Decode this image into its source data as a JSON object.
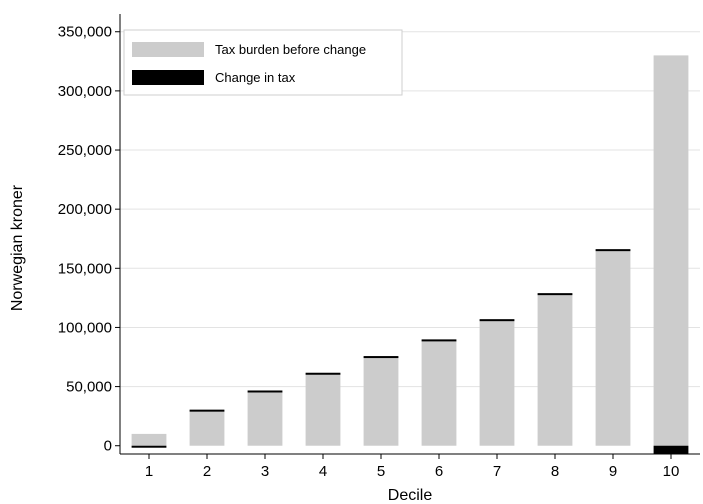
{
  "chart_data": {
    "type": "bar",
    "xlabel": "Decile",
    "ylabel": "Norwegian kroner",
    "ylim": [
      -7000,
      365000
    ],
    "yticks": [
      0,
      50000,
      100000,
      150000,
      200000,
      250000,
      300000,
      350000
    ],
    "ytick_labels": [
      "0",
      "50,000",
      "100,000",
      "150,000",
      "200,000",
      "250,000",
      "300,000",
      "350,000"
    ],
    "categories": [
      "1",
      "2",
      "3",
      "4",
      "5",
      "6",
      "7",
      "8",
      "9",
      "10"
    ],
    "grid": true,
    "legend_position": "top-left",
    "series": [
      {
        "name": "Tax burden before change",
        "color": "#cccccc",
        "values": [
          10000,
          30000,
          46000,
          61000,
          75000,
          89000,
          106000,
          128000,
          165000,
          330000
        ]
      },
      {
        "name": "Change in tax",
        "color": "#000000",
        "values": [
          -500,
          500,
          700,
          700,
          800,
          900,
          1000,
          1000,
          1200,
          -7000
        ]
      }
    ]
  }
}
